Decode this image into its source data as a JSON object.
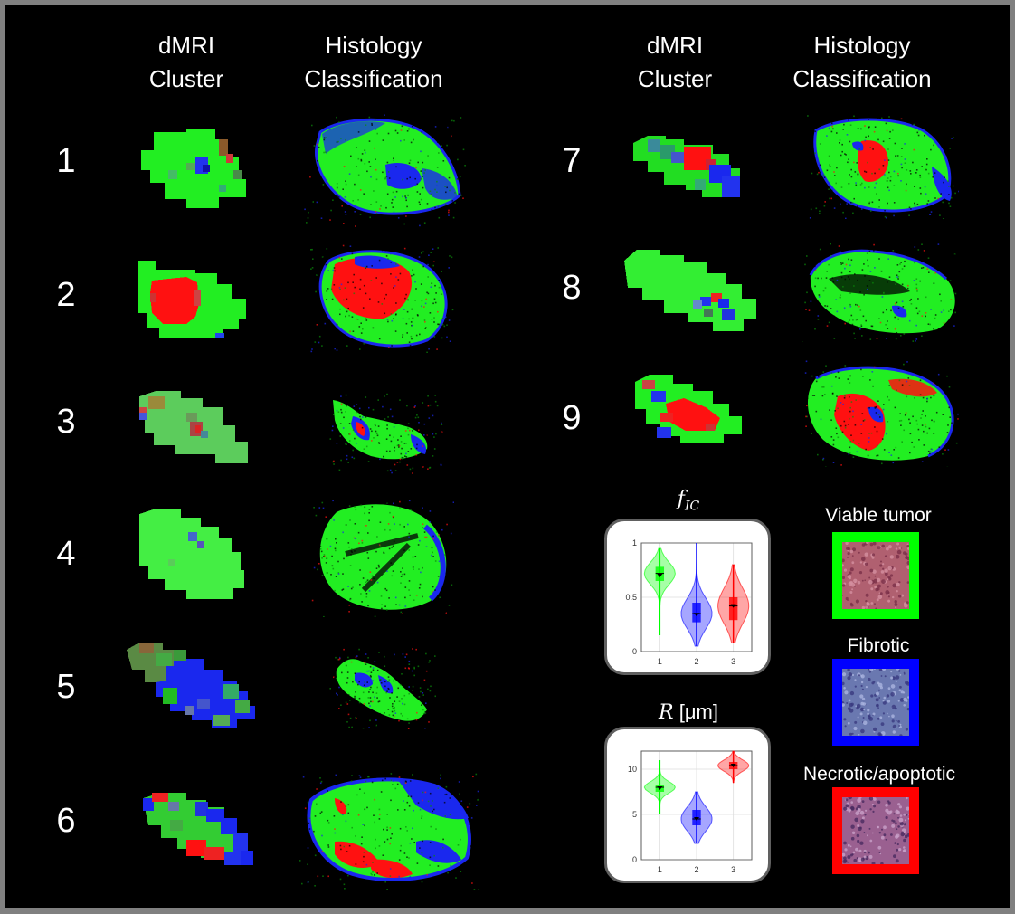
{
  "headers": {
    "dmri_l1": "dMRI",
    "dmri_l2": "Cluster",
    "hist_l1": "Histology",
    "hist_l2": "Classification"
  },
  "samples": [
    "1",
    "2",
    "3",
    "4",
    "5",
    "6",
    "7",
    "8",
    "9"
  ],
  "colors": {
    "viable": "#00ff00",
    "fibrotic": "#0000ff",
    "necrotic": "#ff0000",
    "background": "#000000",
    "outer": "#808080"
  },
  "plots": {
    "fic": {
      "title_var": "f",
      "title_sub": "IC",
      "title_unit": ""
    },
    "r": {
      "title_var": "R",
      "title_sub": "",
      "title_unit": " [μm]"
    }
  },
  "chart_data": [
    {
      "type": "violin",
      "title": "fIC",
      "categories": [
        "1",
        "2",
        "3"
      ],
      "ylim": [
        0,
        1
      ],
      "yticks": [
        "0",
        "0.5",
        "1"
      ],
      "grid": true,
      "series": [
        {
          "category": "1",
          "color": "#00ff00",
          "median": 0.72,
          "q1": 0.65,
          "q3": 0.78,
          "min": 0.15,
          "max": 0.95,
          "mean": 0.7
        },
        {
          "category": "2",
          "color": "#0000ff",
          "median": 0.35,
          "q1": 0.27,
          "q3": 0.45,
          "min": 0.05,
          "max": 1.0,
          "mean": 0.34
        },
        {
          "category": "3",
          "color": "#ff0000",
          "median": 0.42,
          "q1": 0.29,
          "q3": 0.5,
          "min": 0.08,
          "max": 0.8,
          "mean": 0.42
        }
      ]
    },
    {
      "type": "violin",
      "title": "R [μm]",
      "categories": [
        "1",
        "2",
        "3"
      ],
      "ylim": [
        0,
        12
      ],
      "yticks": [
        "0",
        "5",
        "10"
      ],
      "grid": true,
      "series": [
        {
          "category": "1",
          "color": "#00ff00",
          "median": 8.0,
          "q1": 7.5,
          "q3": 8.3,
          "min": 5.0,
          "max": 11.0,
          "mean": 7.9
        },
        {
          "category": "2",
          "color": "#0000ff",
          "median": 4.5,
          "q1": 3.8,
          "q3": 5.5,
          "min": 1.8,
          "max": 7.5,
          "mean": 4.5
        },
        {
          "category": "3",
          "color": "#ff0000",
          "median": 10.4,
          "q1": 10.0,
          "q3": 10.8,
          "min": 8.5,
          "max": 12.0,
          "mean": 10.4
        }
      ]
    }
  ],
  "legend": {
    "viable": "Viable tumor",
    "fibrotic": "Fibrotic",
    "necrotic": "Necrotic/apoptotic"
  }
}
